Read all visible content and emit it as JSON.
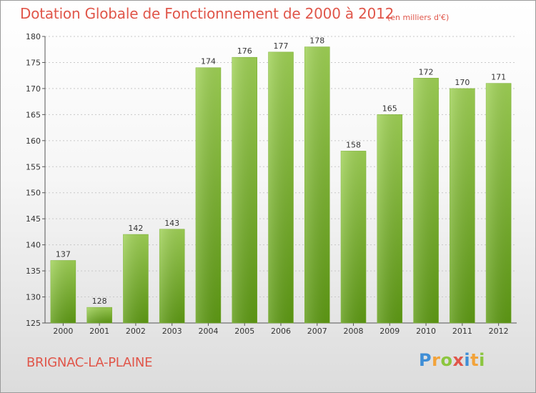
{
  "header": {
    "title": "Dotation Globale de Fonctionnement de 2000 à 2012",
    "unit": "(en milliers d'€)"
  },
  "footer": {
    "commune": "BRIGNAC-LA-PLAINE",
    "logo_letters": [
      "P",
      "r",
      "o",
      "x",
      "i",
      "t",
      "i"
    ]
  },
  "colors": {
    "title": "#e0564a",
    "bar_top": "#9fd155",
    "bar_bottom": "#5e9a14",
    "axis": "#555555",
    "grid": "#c8c8c8",
    "logo": [
      "#3f8ed6",
      "#f2a33a",
      "#8cc63f",
      "#e0564a",
      "#3f8ed6",
      "#f2a33a",
      "#8cc63f"
    ]
  },
  "chart_data": {
    "type": "bar",
    "title": "Dotation Globale de Fonctionnement de 2000 à 2012",
    "subtitle": "(en milliers d'€)",
    "categories": [
      "2000",
      "2001",
      "2002",
      "2003",
      "2004",
      "2005",
      "2006",
      "2007",
      "2008",
      "2009",
      "2010",
      "2011",
      "2012"
    ],
    "values": [
      137,
      128,
      142,
      143,
      174,
      176,
      177,
      178,
      158,
      165,
      172,
      170,
      171
    ],
    "ylim": [
      125,
      180
    ],
    "yticks": [
      125,
      130,
      135,
      140,
      145,
      150,
      155,
      160,
      165,
      170,
      175,
      180
    ],
    "grid": true,
    "data_labels": true,
    "legend": "none"
  }
}
